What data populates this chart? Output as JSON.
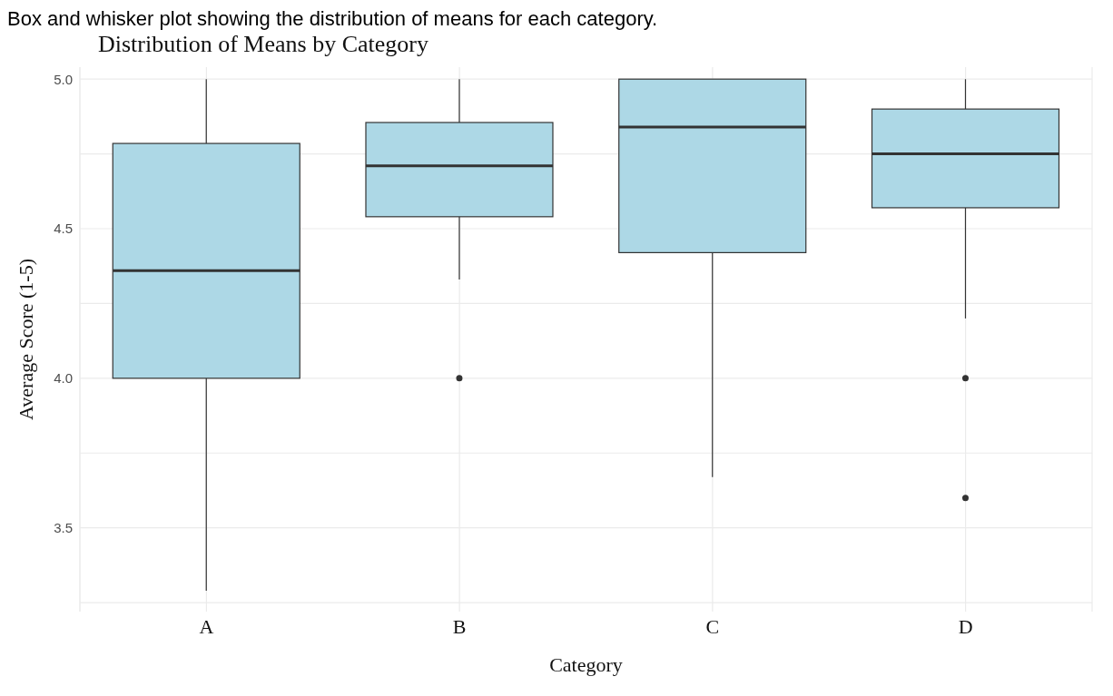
{
  "chart_data": {
    "type": "box",
    "title": "Distribution of Means by Category",
    "xlabel": "Category",
    "ylabel": "Average Score (1-5)",
    "annotations": [
      "Box and whisker plot showing the distribution of means for each category."
    ],
    "categories": [
      "A",
      "B",
      "C",
      "D"
    ],
    "series": [
      {
        "color": "#add8e6",
        "boxes": [
          {
            "low": 3.29,
            "q1": 4.0,
            "median": 4.36,
            "q3": 4.785,
            "high": 5.0
          },
          {
            "low": 4.33,
            "q1": 4.54,
            "median": 4.71,
            "q3": 4.855,
            "high": 5.0,
            "outliers": [
              4.0
            ]
          },
          {
            "low": 3.67,
            "q1": 4.42,
            "median": 4.84,
            "q3": 5.0,
            "high": 5.0
          },
          {
            "low": 4.2,
            "q1": 4.57,
            "median": 4.75,
            "q3": 4.9,
            "high": 5.0,
            "outliers": [
              4.0,
              3.6
            ]
          }
        ]
      }
    ],
    "ylim": [
      3.22,
      5.04
    ],
    "yticks": [
      {
        "value": 3.25,
        "label": null
      },
      {
        "value": 3.5,
        "label": "3.5"
      },
      {
        "value": 3.75,
        "label": null
      },
      {
        "value": 4.0,
        "label": "4.0"
      },
      {
        "value": 4.25,
        "label": null
      },
      {
        "value": 4.5,
        "label": "4.5"
      },
      {
        "value": 4.75,
        "label": null
      },
      {
        "value": 5.0,
        "label": "5.0"
      }
    ],
    "grid": true
  }
}
